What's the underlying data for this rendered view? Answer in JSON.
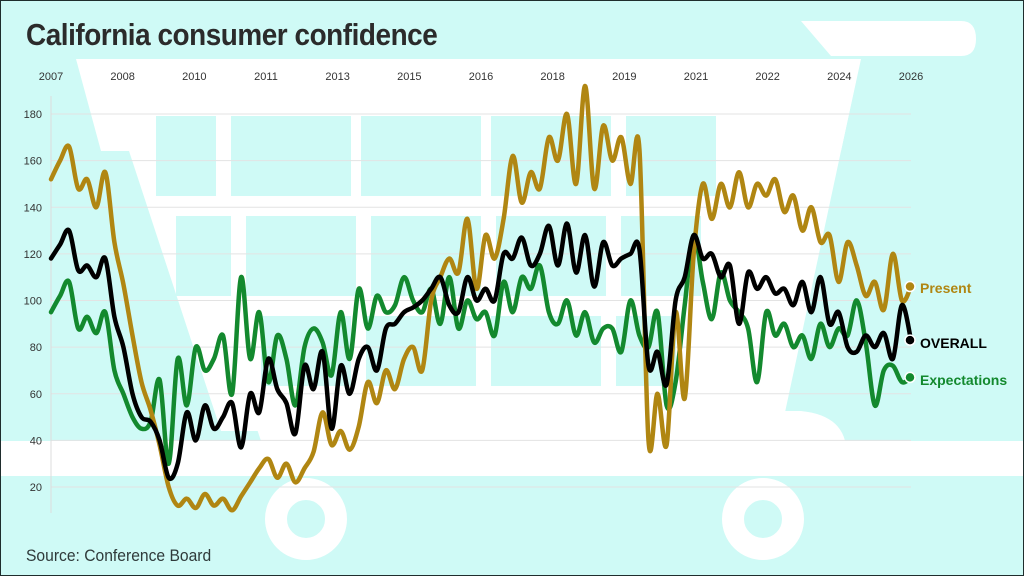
{
  "title": "California consumer confidence",
  "source": "Source: Conference Board",
  "colors": {
    "background": "#cffaf6",
    "cart": "#ffffff",
    "grid": "#e3e3e3",
    "present": "#b08612",
    "overall": "#000000",
    "expectations": "#13892e"
  },
  "chart_data": {
    "type": "line",
    "title": "California consumer confidence",
    "xlabel": "",
    "ylabel": "",
    "ylim": [
      10,
      190
    ],
    "yticks": [
      20,
      40,
      60,
      80,
      100,
      120,
      140,
      160,
      180
    ],
    "xticks": [
      "2007",
      "2008",
      "2010",
      "2011",
      "2013",
      "2015",
      "2016",
      "2018",
      "2019",
      "2021",
      "2022",
      "2024",
      "2026"
    ],
    "x_range": [
      2007.0,
      2026.0
    ],
    "grid": true,
    "legend_position": "right-end-labels",
    "x": [
      2007.0,
      2007.2,
      2007.4,
      2007.6,
      2007.8,
      2008.0,
      2008.2,
      2008.4,
      2008.6,
      2008.8,
      2009.0,
      2009.2,
      2009.4,
      2009.6,
      2009.8,
      2010.0,
      2010.2,
      2010.4,
      2010.6,
      2010.8,
      2011.0,
      2011.2,
      2011.4,
      2011.6,
      2011.8,
      2012.0,
      2012.2,
      2012.4,
      2012.6,
      2012.8,
      2013.0,
      2013.2,
      2013.4,
      2013.6,
      2013.8,
      2014.0,
      2014.2,
      2014.4,
      2014.6,
      2014.8,
      2015.0,
      2015.2,
      2015.4,
      2015.6,
      2015.8,
      2016.0,
      2016.2,
      2016.4,
      2016.6,
      2016.8,
      2017.0,
      2017.2,
      2017.4,
      2017.6,
      2017.8,
      2018.0,
      2018.2,
      2018.4,
      2018.6,
      2018.8,
      2019.0,
      2019.2,
      2019.4,
      2019.6,
      2019.8,
      2020.0,
      2020.2,
      2020.4,
      2020.6,
      2020.8,
      2021.0,
      2021.2,
      2021.4,
      2021.6,
      2021.8,
      2022.0,
      2022.2,
      2022.4,
      2022.6,
      2022.8,
      2023.0,
      2023.2,
      2023.4,
      2023.6,
      2023.8,
      2024.0,
      2024.2,
      2024.4,
      2024.6,
      2024.8,
      2025.0,
      2025.2,
      2025.4,
      2025.6,
      2025.8,
      2026.0
    ],
    "series": [
      {
        "name": "Present",
        "end_value": 106,
        "values": [
          152,
          160,
          166,
          148,
          152,
          140,
          155,
          125,
          107,
          85,
          65,
          53,
          38,
          20,
          12,
          15,
          11,
          17,
          12,
          15,
          10,
          16,
          22,
          28,
          32,
          24,
          30,
          22,
          28,
          35,
          52,
          38,
          44,
          36,
          46,
          65,
          56,
          70,
          62,
          75,
          80,
          70,
          100,
          110,
          118,
          112,
          135,
          105,
          128,
          118,
          135,
          162,
          142,
          155,
          148,
          170,
          160,
          180,
          150,
          192,
          148,
          175,
          160,
          170,
          150,
          165,
          40,
          60,
          38,
          95,
          58,
          120,
          150,
          135,
          150,
          140,
          155,
          140,
          150,
          145,
          152,
          138,
          145,
          130,
          140,
          125,
          128,
          108,
          125,
          115,
          102,
          108,
          96,
          120,
          100,
          106
        ]
      },
      {
        "name": "OVERALL",
        "end_value": 83,
        "values": [
          118,
          124,
          130,
          113,
          115,
          110,
          118,
          93,
          80,
          60,
          50,
          48,
          40,
          24,
          30,
          52,
          40,
          55,
          45,
          50,
          56,
          37,
          60,
          52,
          75,
          62,
          56,
          43,
          72,
          62,
          78,
          45,
          72,
          60,
          75,
          80,
          70,
          88,
          90,
          95,
          97,
          100,
          105,
          110,
          98,
          95,
          110,
          100,
          105,
          100,
          120,
          118,
          127,
          115,
          120,
          132,
          115,
          133,
          112,
          128,
          106,
          125,
          115,
          118,
          120,
          122,
          72,
          78,
          64,
          100,
          110,
          128,
          118,
          120,
          110,
          115,
          90,
          112,
          105,
          110,
          103,
          105,
          98,
          108,
          95,
          110,
          90,
          95,
          80,
          78,
          85,
          80,
          86,
          75,
          98,
          83
        ]
      },
      {
        "name": "Expectations",
        "end_value": 67,
        "values": [
          95,
          102,
          108,
          88,
          93,
          86,
          95,
          70,
          60,
          50,
          45,
          48,
          66,
          30,
          75,
          55,
          80,
          70,
          75,
          85,
          60,
          110,
          75,
          95,
          65,
          85,
          75,
          55,
          80,
          88,
          82,
          68,
          95,
          75,
          105,
          88,
          102,
          95,
          98,
          110,
          100,
          95,
          105,
          90,
          110,
          88,
          100,
          92,
          95,
          85,
          108,
          95,
          110,
          105,
          115,
          95,
          90,
          100,
          85,
          95,
          82,
          88,
          88,
          78,
          100,
          85,
          80,
          95,
          55,
          65,
          98,
          128,
          108,
          92,
          112,
          100,
          95,
          88,
          65,
          95,
          85,
          90,
          80,
          85,
          75,
          90,
          80,
          88,
          85,
          100,
          82,
          55,
          70,
          72,
          65,
          67
        ]
      }
    ]
  },
  "legend": {
    "present": "Present",
    "overall": "OVERALL",
    "expectations": "Expectations"
  }
}
